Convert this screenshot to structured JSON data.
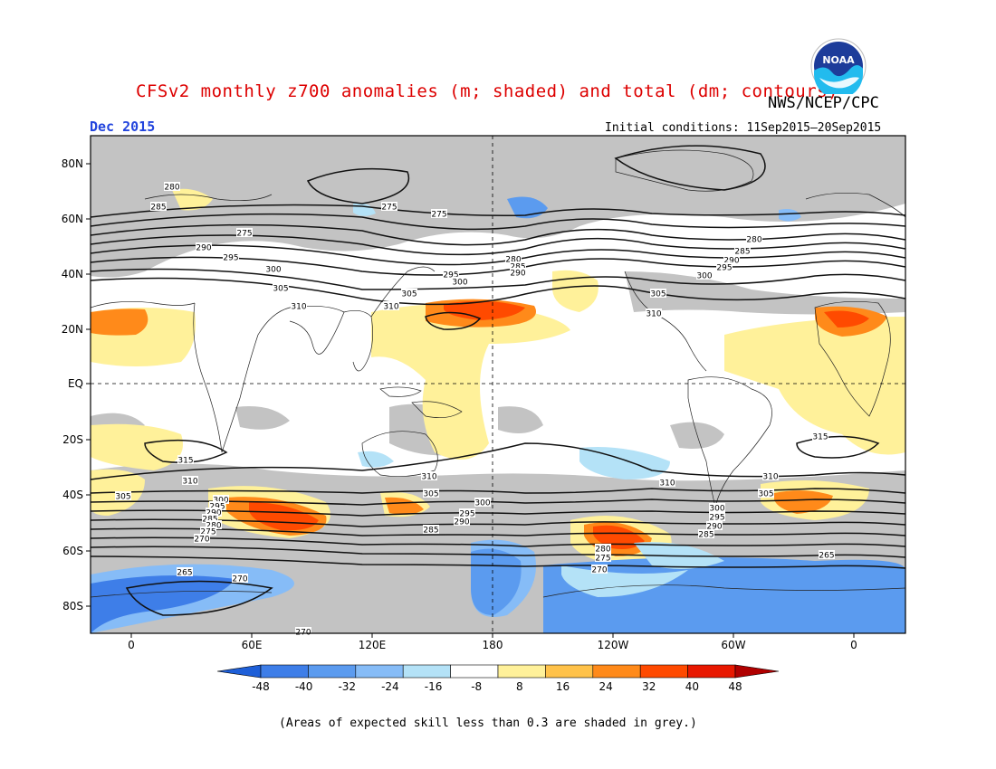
{
  "title": "CFSv2 monthly z700 anomalies (m; shaded) and total (dm; contours)",
  "agency": "NWS/NCEP/CPC",
  "month": "Dec 2015",
  "initial_conditions": "Initial conditions: 11Sep2015–20Sep2015",
  "footnote": "(Areas of expected skill less than 0.3 are shaded in grey.)",
  "logo_text": "NOAA",
  "lat_labels": [
    "80N",
    "60N",
    "40N",
    "20N",
    "EQ",
    "20S",
    "40S",
    "60S",
    "80S"
  ],
  "lon_labels": [
    "0",
    "60E",
    "120E",
    "180",
    "120W",
    "60W",
    "0"
  ],
  "colorbar": {
    "ticks": [
      "-48",
      "-40",
      "-32",
      "-24",
      "-16",
      "-8",
      "8",
      "16",
      "24",
      "32",
      "40",
      "48"
    ],
    "colors": [
      "#1e5fd8",
      "#3e7ee8",
      "#5b9bef",
      "#86bcf7",
      "#b4e2f7",
      "#ffffff",
      "#fff19a",
      "#ffc24a",
      "#ff8a1a",
      "#ff4a00",
      "#e81800",
      "#b00000"
    ]
  },
  "contour_labels": [
    {
      "text": "280"
    },
    {
      "text": "285"
    },
    {
      "text": "290"
    },
    {
      "text": "295"
    },
    {
      "text": "300"
    },
    {
      "text": "305"
    },
    {
      "text": "310"
    },
    {
      "text": "275"
    },
    {
      "text": "275"
    },
    {
      "text": "275"
    },
    {
      "text": "280"
    },
    {
      "text": "285"
    },
    {
      "text": "290"
    },
    {
      "text": "295"
    },
    {
      "text": "300"
    },
    {
      "text": "305"
    },
    {
      "text": "310"
    },
    {
      "text": "280"
    },
    {
      "text": "285"
    },
    {
      "text": "290"
    },
    {
      "text": "295"
    },
    {
      "text": "300"
    },
    {
      "text": "305"
    },
    {
      "text": "310"
    },
    {
      "text": "315"
    },
    {
      "text": "310"
    },
    {
      "text": "305"
    },
    {
      "text": "300"
    },
    {
      "text": "295"
    },
    {
      "text": "290"
    },
    {
      "text": "285"
    },
    {
      "text": "280"
    },
    {
      "text": "275"
    },
    {
      "text": "270"
    },
    {
      "text": "265"
    },
    {
      "text": "270"
    },
    {
      "text": "310"
    },
    {
      "text": "305"
    },
    {
      "text": "300"
    },
    {
      "text": "295"
    },
    {
      "text": "290"
    },
    {
      "text": "285"
    },
    {
      "text": "280"
    },
    {
      "text": "275"
    },
    {
      "text": "270"
    },
    {
      "text": "310"
    },
    {
      "text": "310"
    },
    {
      "text": "305"
    },
    {
      "text": "300"
    },
    {
      "text": "295"
    },
    {
      "text": "290"
    },
    {
      "text": "285"
    },
    {
      "text": "265"
    },
    {
      "text": "315"
    },
    {
      "text": "270"
    }
  ]
}
